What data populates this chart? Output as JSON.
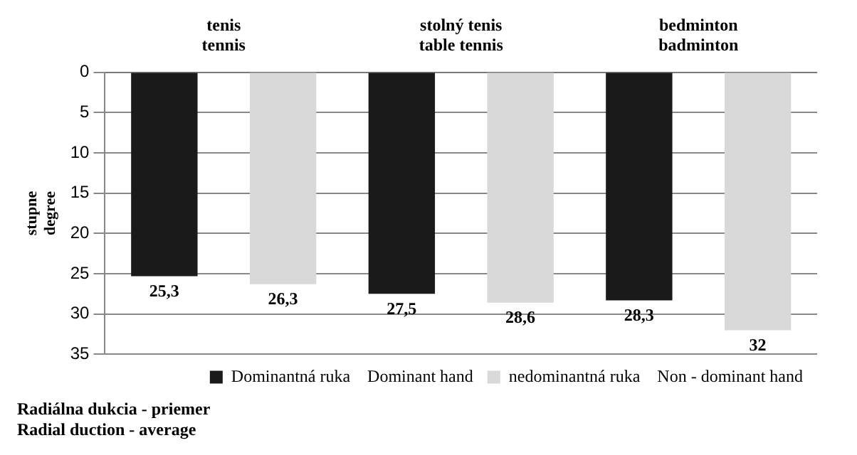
{
  "chart_data": {
    "type": "bar",
    "title": "Radiálna dukcia - priemer\nRadial duction - average",
    "ylabel": "stupne degree",
    "categories": [
      "tenis\ntennis",
      "stolný tenis\ntable tennis",
      "bedminton\nbadminton"
    ],
    "series": [
      {
        "name": "Dominantná ruka    Dominant hand",
        "color": "#1a1a1a",
        "values": [
          25.3,
          27.5,
          28.3
        ],
        "value_labels": [
          "25,3",
          "27,5",
          "28,3"
        ]
      },
      {
        "name": "nedominantná ruka    Non - dominant hand",
        "color": "#d9d9d9",
        "values": [
          26.3,
          28.6,
          32
        ],
        "value_labels": [
          "26,3",
          "28,6",
          "32"
        ]
      }
    ],
    "ylim": [
      35,
      0
    ],
    "yticks": [
      0,
      5,
      10,
      15,
      20,
      25,
      30,
      35
    ],
    "grid": "y",
    "legend": "bottom right"
  }
}
